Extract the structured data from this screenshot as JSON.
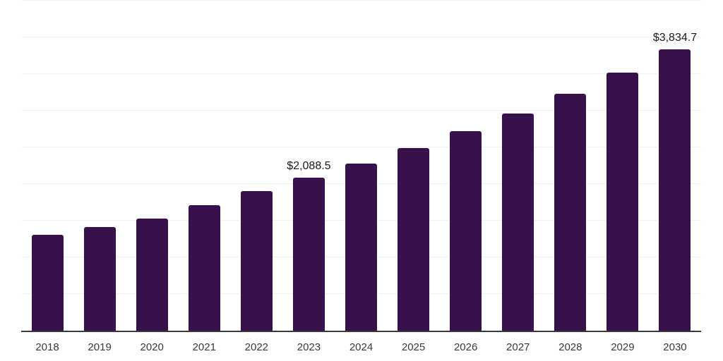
{
  "chart_data": {
    "type": "bar",
    "title": "",
    "xlabel": "",
    "ylabel": "",
    "categories": [
      "2018",
      "2019",
      "2020",
      "2021",
      "2022",
      "2023",
      "2024",
      "2025",
      "2026",
      "2027",
      "2028",
      "2029",
      "2030"
    ],
    "values": [
      1310,
      1415,
      1530,
      1710,
      1905,
      2088.5,
      2280,
      2490,
      2720,
      2960,
      3230,
      3520,
      3834.7
    ],
    "data_labels": [
      "",
      "",
      "",
      "",
      "",
      "$2,088.5",
      "",
      "",
      "",
      "",
      "",
      "",
      "$3,834.7"
    ],
    "ylim": [
      0,
      4500
    ],
    "grid_step": 500,
    "grid": "horizontal",
    "legend": "none",
    "bar_color": "#38104e",
    "grid_color": "#f2f2f2",
    "axis_line_color": "#3a3a3a",
    "tick_label_color": "#3a3a3a",
    "data_label_color": "#1a1a1a"
  }
}
